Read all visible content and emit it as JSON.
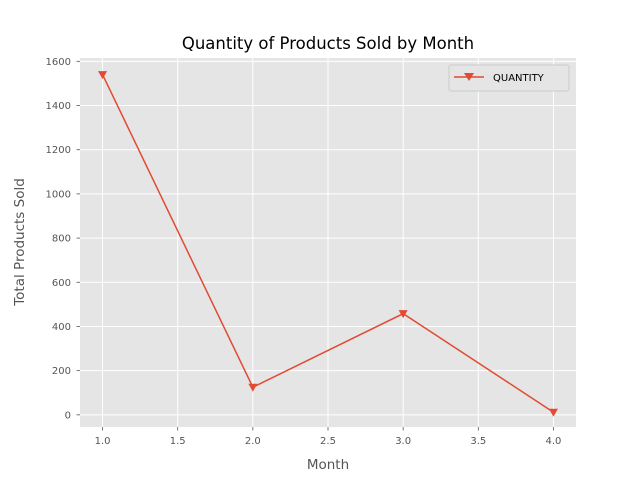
{
  "chart_data": {
    "type": "line",
    "title": "Quantity of Products Sold by Month",
    "xlabel": "Month",
    "ylabel": "Total Products Sold",
    "xlim": [
      0.85,
      4.15
    ],
    "ylim": [
      -55,
      1615
    ],
    "xticks": [
      1.0,
      1.5,
      2.0,
      2.5,
      3.0,
      3.5,
      4.0
    ],
    "xtick_labels": [
      "1.0",
      "1.5",
      "2.0",
      "2.5",
      "3.0",
      "3.5",
      "4.0"
    ],
    "yticks": [
      0,
      200,
      400,
      600,
      800,
      1000,
      1200,
      1400,
      1600
    ],
    "ytick_labels": [
      "0",
      "200",
      "400",
      "600",
      "800",
      "1000",
      "1200",
      "1400",
      "1600"
    ],
    "grid": true,
    "legend_position": "upper right",
    "series": [
      {
        "name": "QUANTITY",
        "color": "#E24A33",
        "marker": "triangle-down",
        "x": [
          1.0,
          2.0,
          3.0,
          4.0
        ],
        "y": [
          1540,
          125,
          458,
          12
        ]
      }
    ]
  },
  "colors": {
    "plot_background": "#E5E5E5",
    "grid": "#FFFFFF",
    "figure_background": "#FFFFFF"
  }
}
